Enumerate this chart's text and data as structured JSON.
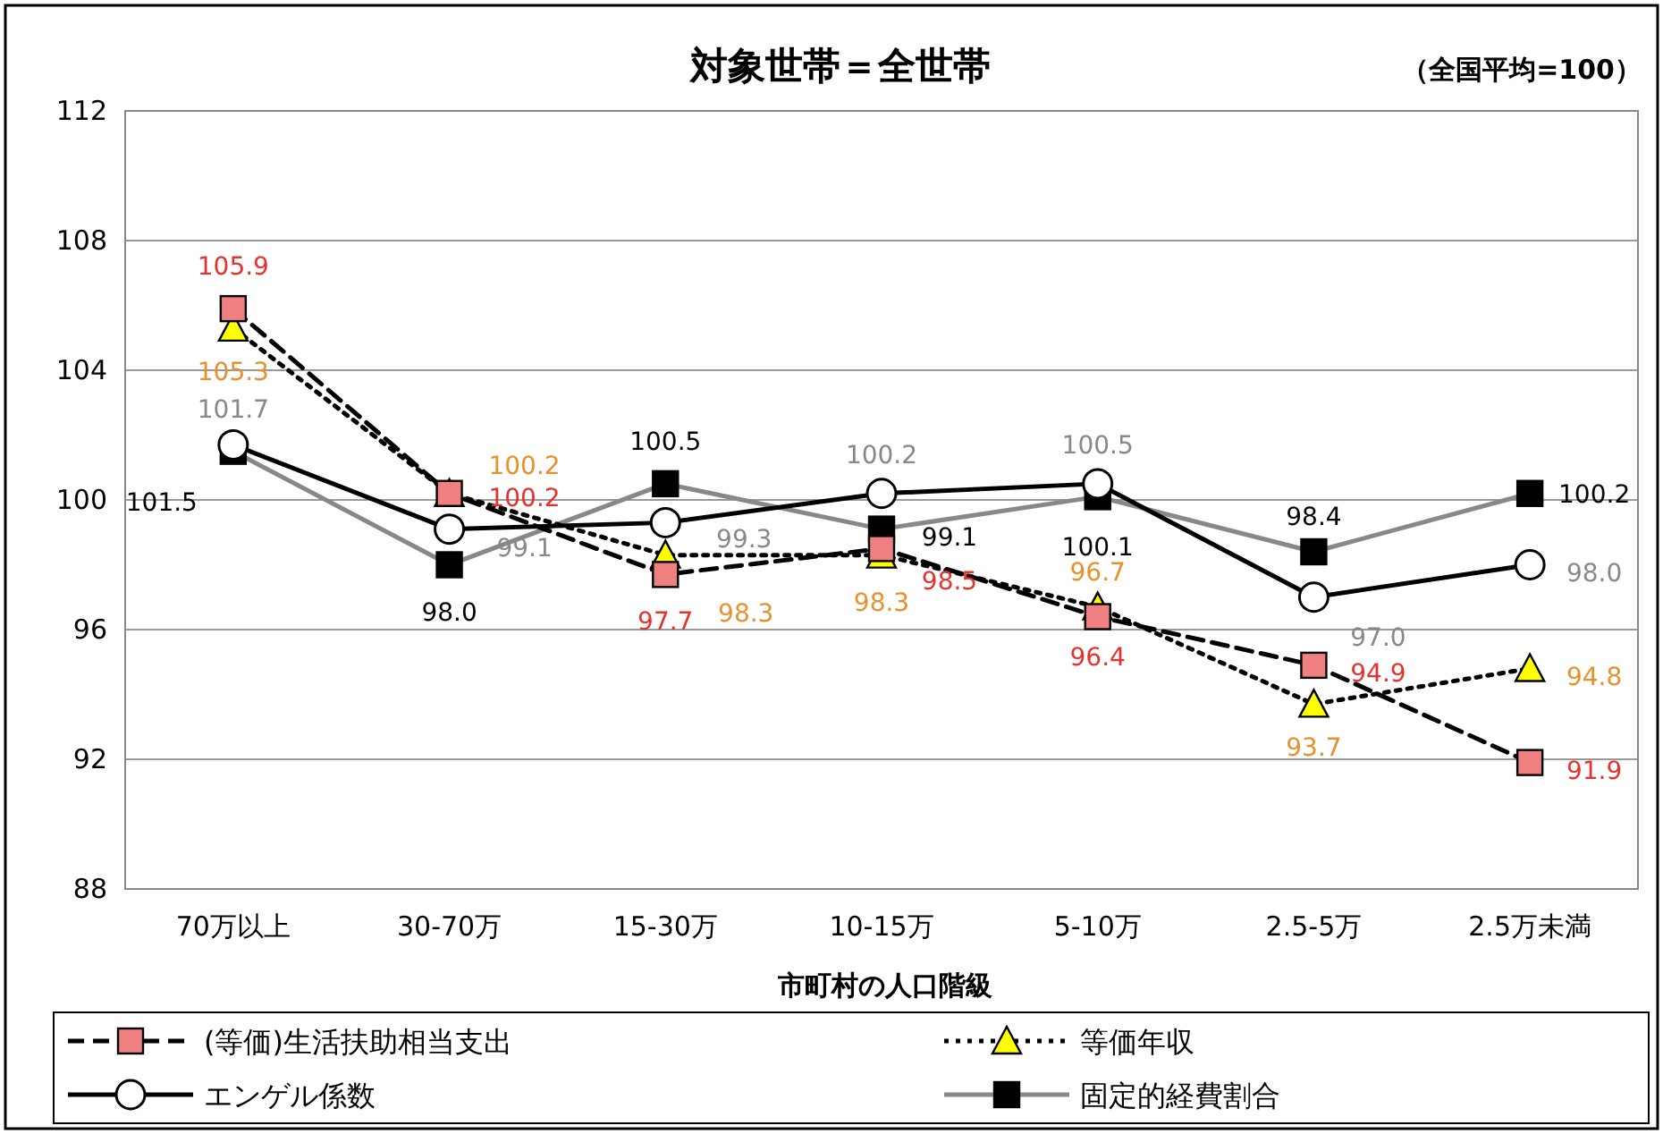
{
  "chart_data": {
    "type": "line",
    "title": "対象世帯＝全世帯",
    "annotations": [
      "（全国平均=100）"
    ],
    "xlabel": "市町村の人口階級",
    "categories": [
      "70万以上",
      "30-70万",
      "15-30万",
      "10-15万",
      "5-10万",
      "2.5-5万",
      "2.5万未満"
    ],
    "ylim": [
      88,
      112
    ],
    "yticks": [
      88,
      92,
      96,
      100,
      104,
      108,
      112
    ],
    "grid": "y",
    "legend": "bottom",
    "series": [
      {
        "name": "(等価)生活扶助相当支出",
        "color": "#f08080",
        "marker": "square",
        "line_style": "dashed",
        "values": [
          105.9,
          100.2,
          97.7,
          98.5,
          96.4,
          94.9,
          91.9
        ],
        "value_labels": [
          "105.9",
          "100.2",
          "97.7",
          "98.5",
          "96.4",
          "94.9",
          "91.9"
        ]
      },
      {
        "name": "等価年収",
        "color": "#ffff00",
        "marker": "triangle",
        "line_style": "dotted",
        "values": [
          105.3,
          100.2,
          98.3,
          98.3,
          96.7,
          93.7,
          94.8
        ],
        "value_labels": [
          "105.3",
          "100.2",
          "98.3",
          "98.3",
          "96.7",
          "93.7",
          "94.8"
        ]
      },
      {
        "name": "エンゲル係数",
        "color": "#ffffff",
        "marker": "circle",
        "line_style": "solid",
        "values": [
          101.7,
          99.1,
          99.3,
          100.2,
          100.5,
          97.0,
          98.0
        ],
        "value_labels": [
          "101.7",
          "99.1",
          "99.3",
          "100.2",
          "100.5",
          "97.0",
          "98.0"
        ]
      },
      {
        "name": "固定的経費割合",
        "color": "#000000",
        "marker": "square",
        "line_style": "solid",
        "values": [
          101.5,
          98.0,
          100.5,
          99.1,
          100.1,
          98.4,
          100.2
        ],
        "value_labels": [
          "101.5",
          "98.0",
          "100.5",
          "99.1",
          "100.1",
          "98.4",
          "100.2"
        ]
      }
    ]
  }
}
